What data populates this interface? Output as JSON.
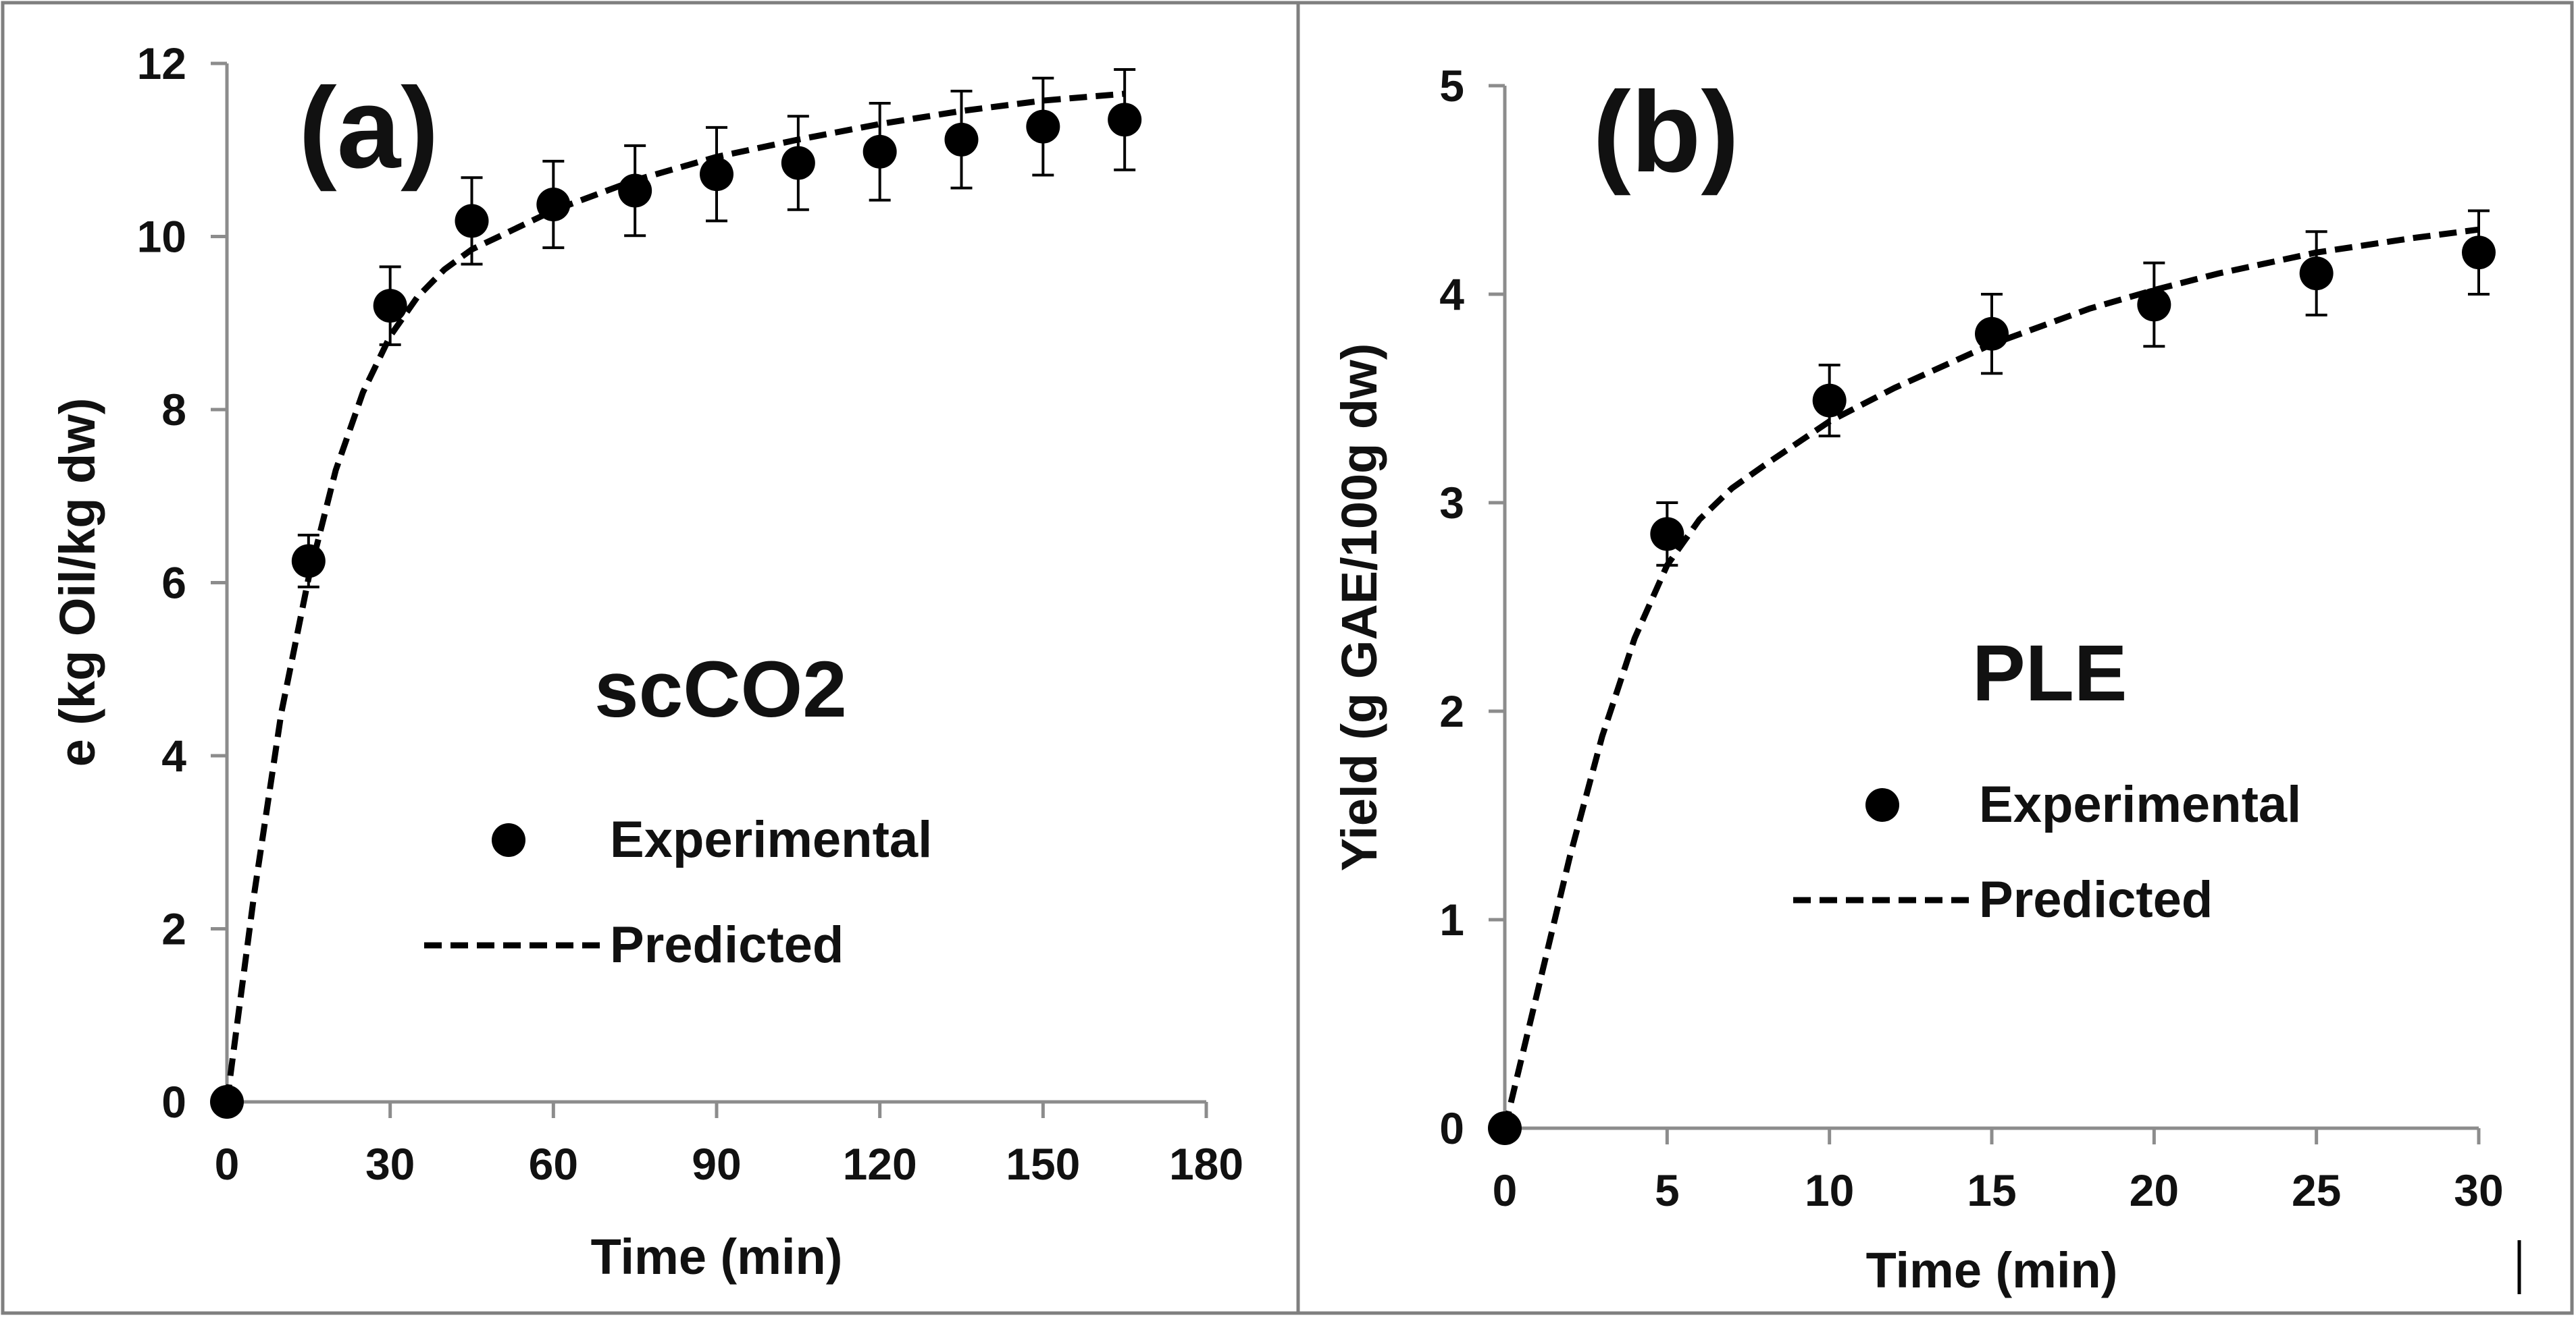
{
  "chart_data": [
    {
      "type": "scatter",
      "panel_label": "(a)",
      "panel_title": "scCO2",
      "xlabel": "Time (min)",
      "ylabel": "e (kg Oil/kg dw)",
      "xlim": [
        0,
        180
      ],
      "ylim": [
        0,
        12
      ],
      "xticks": [
        "0",
        "30",
        "60",
        "90",
        "120",
        "150",
        "180"
      ],
      "yticks": [
        "0",
        "2",
        "4",
        "6",
        "8",
        "10",
        "12"
      ],
      "legend": {
        "placement": "center",
        "experimental": "Experimental",
        "predicted": "Predicted"
      },
      "series": [
        {
          "name": "Experimental",
          "x": [
            0,
            15,
            30,
            45,
            60,
            75,
            90,
            105,
            120,
            135,
            150,
            165
          ],
          "y": [
            0,
            6.25,
            9.2,
            10.18,
            10.37,
            10.53,
            10.72,
            10.85,
            10.98,
            11.12,
            11.27,
            11.35
          ],
          "err": [
            0,
            0.3,
            0.45,
            0.5,
            0.5,
            0.52,
            0.54,
            0.54,
            0.56,
            0.56,
            0.56,
            0.58
          ]
        },
        {
          "name": "Predicted",
          "x": [
            0,
            5,
            10,
            15,
            20,
            25,
            30,
            35,
            40,
            45,
            50,
            60,
            75,
            90,
            105,
            120,
            135,
            150,
            165
          ],
          "y": [
            0,
            2.4,
            4.5,
            6.05,
            7.3,
            8.2,
            8.85,
            9.3,
            9.62,
            9.85,
            10.0,
            10.3,
            10.65,
            10.92,
            11.12,
            11.3,
            11.45,
            11.57,
            11.65
          ]
        }
      ]
    },
    {
      "type": "scatter",
      "panel_label": "(b)",
      "panel_title": "PLE",
      "xlabel": "Time (min)",
      "ylabel": "Yield (g GAE/100g dw)",
      "xlim": [
        0,
        30
      ],
      "ylim": [
        0,
        5
      ],
      "xticks": [
        "0",
        "5",
        "10",
        "15",
        "20",
        "25",
        "30"
      ],
      "yticks": [
        "0",
        "1",
        "2",
        "3",
        "4",
        "5"
      ],
      "legend": {
        "placement": "center",
        "experimental": "Experimental",
        "predicted": "Predicted"
      },
      "series": [
        {
          "name": "Experimental",
          "x": [
            0,
            5,
            10,
            15,
            20,
            25,
            30
          ],
          "y": [
            0,
            2.85,
            3.49,
            3.81,
            3.95,
            4.1,
            4.2
          ],
          "err": [
            0,
            0.15,
            0.17,
            0.19,
            0.2,
            0.2,
            0.2
          ]
        },
        {
          "name": "Predicted",
          "x": [
            0,
            1,
            2,
            3,
            4,
            5,
            6,
            7,
            8,
            10,
            12,
            15,
            18,
            20,
            22,
            25,
            28,
            30
          ],
          "y": [
            0,
            0.65,
            1.3,
            1.88,
            2.35,
            2.7,
            2.92,
            3.07,
            3.18,
            3.39,
            3.55,
            3.76,
            3.93,
            4.02,
            4.1,
            4.2,
            4.27,
            4.31
          ]
        }
      ]
    }
  ]
}
